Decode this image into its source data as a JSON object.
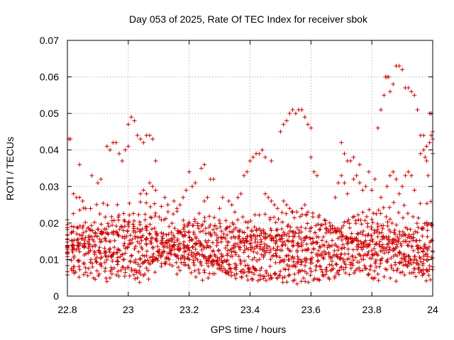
{
  "chart_data": {
    "type": "scatter",
    "title": "Day 053 of 2025, Rate Of TEC Index for receiver sbok",
    "xlabel": "GPS time / hours",
    "ylabel": "ROTI / TECUs",
    "xlim": [
      22.8,
      24
    ],
    "ylim": [
      0,
      0.07
    ],
    "xticks": [
      "22.8",
      "23",
      "23.2",
      "23.4",
      "23.6",
      "23.8",
      "24"
    ],
    "yticks": [
      "0",
      "0.01",
      "0.02",
      "0.03",
      "0.04",
      "0.05",
      "0.06",
      "0.07"
    ],
    "grid": true,
    "marker": "plus",
    "color": "#cc0000",
    "series": [
      {
        "points": [
          [
            22.805,
            0.043
          ],
          [
            22.81,
            0.043
          ],
          [
            22.84,
            0.036
          ],
          [
            22.88,
            0.033
          ],
          [
            22.9,
            0.031
          ],
          [
            22.91,
            0.032
          ],
          [
            22.93,
            0.041
          ],
          [
            22.94,
            0.04
          ],
          [
            22.95,
            0.042
          ],
          [
            22.96,
            0.042
          ],
          [
            22.97,
            0.039
          ],
          [
            22.98,
            0.037
          ],
          [
            22.99,
            0.04
          ],
          [
            23.0,
            0.041
          ],
          [
            23.0,
            0.047
          ],
          [
            23.01,
            0.049
          ],
          [
            23.02,
            0.048
          ],
          [
            23.03,
            0.044
          ],
          [
            23.04,
            0.043
          ],
          [
            23.05,
            0.042
          ],
          [
            23.06,
            0.044
          ],
          [
            23.07,
            0.044
          ],
          [
            23.08,
            0.043
          ],
          [
            23.09,
            0.037
          ],
          [
            23.2,
            0.034
          ],
          [
            23.24,
            0.035
          ],
          [
            23.25,
            0.036
          ],
          [
            23.27,
            0.032
          ],
          [
            23.28,
            0.032
          ],
          [
            23.31,
            0.027
          ],
          [
            23.38,
            0.033
          ],
          [
            23.39,
            0.034
          ],
          [
            23.4,
            0.037
          ],
          [
            23.41,
            0.038
          ],
          [
            23.42,
            0.039
          ],
          [
            23.43,
            0.039
          ],
          [
            23.44,
            0.04
          ],
          [
            23.45,
            0.038
          ],
          [
            23.47,
            0.037
          ],
          [
            23.5,
            0.045
          ],
          [
            23.51,
            0.047
          ],
          [
            23.52,
            0.048
          ],
          [
            23.53,
            0.05
          ],
          [
            23.54,
            0.051
          ],
          [
            23.55,
            0.05
          ],
          [
            23.56,
            0.051
          ],
          [
            23.57,
            0.051
          ],
          [
            23.58,
            0.049
          ],
          [
            23.59,
            0.047
          ],
          [
            23.6,
            0.046
          ],
          [
            23.6,
            0.038
          ],
          [
            23.61,
            0.034
          ],
          [
            23.62,
            0.033
          ],
          [
            23.7,
            0.042
          ],
          [
            23.71,
            0.039
          ],
          [
            23.72,
            0.037
          ],
          [
            23.73,
            0.037
          ],
          [
            23.74,
            0.038
          ],
          [
            23.76,
            0.036
          ],
          [
            23.78,
            0.03
          ],
          [
            23.79,
            0.034
          ],
          [
            23.8,
            0.029
          ],
          [
            23.81,
            0.032
          ],
          [
            23.82,
            0.046
          ],
          [
            23.83,
            0.051
          ],
          [
            23.84,
            0.055
          ],
          [
            23.845,
            0.06
          ],
          [
            23.85,
            0.06
          ],
          [
            23.855,
            0.06
          ],
          [
            23.86,
            0.056
          ],
          [
            23.87,
            0.058
          ],
          [
            23.88,
            0.063
          ],
          [
            23.89,
            0.063
          ],
          [
            23.9,
            0.062
          ],
          [
            23.91,
            0.057
          ],
          [
            23.92,
            0.057
          ],
          [
            23.93,
            0.056
          ],
          [
            23.94,
            0.055
          ],
          [
            23.95,
            0.051
          ],
          [
            23.96,
            0.044
          ],
          [
            23.97,
            0.044
          ],
          [
            23.975,
            0.038
          ],
          [
            23.98,
            0.037
          ],
          [
            23.985,
            0.033
          ],
          [
            23.99,
            0.05
          ],
          [
            23.995,
            0.05
          ],
          [
            23.96,
            0.039
          ],
          [
            23.97,
            0.04
          ],
          [
            23.98,
            0.041
          ],
          [
            23.99,
            0.042
          ],
          [
            23.995,
            0.044
          ],
          [
            24.0,
            0.045
          ],
          [
            24.0,
            0.039
          ],
          [
            24.0,
            0.043
          ],
          [
            23.74,
            0.032
          ],
          [
            23.75,
            0.033
          ],
          [
            23.76,
            0.031
          ],
          [
            23.77,
            0.029
          ],
          [
            23.83,
            0.027
          ],
          [
            23.85,
            0.03
          ],
          [
            23.86,
            0.033
          ],
          [
            23.87,
            0.034
          ],
          [
            23.88,
            0.032
          ],
          [
            23.89,
            0.028
          ],
          [
            23.9,
            0.03
          ],
          [
            23.91,
            0.033
          ],
          [
            23.92,
            0.034
          ],
          [
            23.93,
            0.033
          ],
          [
            23.94,
            0.029
          ],
          [
            23.68,
            0.027
          ],
          [
            23.69,
            0.031
          ],
          [
            23.7,
            0.033
          ],
          [
            23.71,
            0.031
          ],
          [
            23.72,
            0.028
          ],
          [
            22.83,
            0.027
          ],
          [
            22.84,
            0.027
          ],
          [
            22.85,
            0.026
          ],
          [
            22.86,
            0.024
          ],
          [
            22.82,
            0.028
          ],
          [
            22.815,
            0.007
          ],
          [
            22.82,
            0.007
          ],
          [
            22.93,
            0.004
          ],
          [
            22.94,
            0.005
          ],
          [
            23.03,
            0.005
          ],
          [
            23.04,
            0.006
          ],
          [
            23.16,
            0.006
          ],
          [
            23.17,
            0.007
          ],
          [
            23.32,
            0.007
          ],
          [
            23.33,
            0.006
          ],
          [
            23.41,
            0.008
          ],
          [
            23.42,
            0.007
          ],
          [
            23.55,
            0.008
          ],
          [
            23.56,
            0.007
          ],
          [
            23.63,
            0.008
          ],
          [
            23.7,
            0.008
          ],
          [
            23.79,
            0.006
          ],
          [
            23.8,
            0.005
          ],
          [
            23.81,
            0.005
          ],
          [
            23.82,
            0.006
          ],
          [
            23.96,
            0.007
          ],
          [
            23.97,
            0.006
          ],
          [
            23.98,
            0.007
          ],
          [
            24.0,
            0.008
          ],
          [
            23.04,
            0.028
          ],
          [
            23.05,
            0.029
          ],
          [
            23.06,
            0.028
          ],
          [
            23.07,
            0.031
          ],
          [
            23.08,
            0.03
          ],
          [
            23.09,
            0.029
          ],
          [
            23.12,
            0.027
          ],
          [
            23.13,
            0.025
          ],
          [
            23.15,
            0.026
          ],
          [
            23.16,
            0.024
          ],
          [
            23.17,
            0.025
          ],
          [
            23.18,
            0.027
          ],
          [
            23.19,
            0.029
          ],
          [
            23.21,
            0.03
          ],
          [
            23.22,
            0.031
          ],
          [
            23.25,
            0.026
          ],
          [
            23.26,
            0.027
          ],
          [
            23.3,
            0.024
          ],
          [
            23.33,
            0.026
          ],
          [
            23.34,
            0.025
          ],
          [
            23.35,
            0.023
          ],
          [
            23.36,
            0.027
          ],
          [
            23.37,
            0.028
          ],
          [
            23.45,
            0.028
          ],
          [
            23.46,
            0.027
          ],
          [
            23.47,
            0.026
          ],
          [
            23.48,
            0.025
          ],
          [
            23.49,
            0.024
          ],
          [
            23.51,
            0.026
          ],
          [
            23.52,
            0.025
          ],
          [
            23.53,
            0.024
          ],
          [
            23.54,
            0.023
          ],
          [
            23.57,
            0.024
          ],
          [
            23.58,
            0.025
          ],
          [
            23.59,
            0.023
          ]
        ]
      }
    ]
  }
}
